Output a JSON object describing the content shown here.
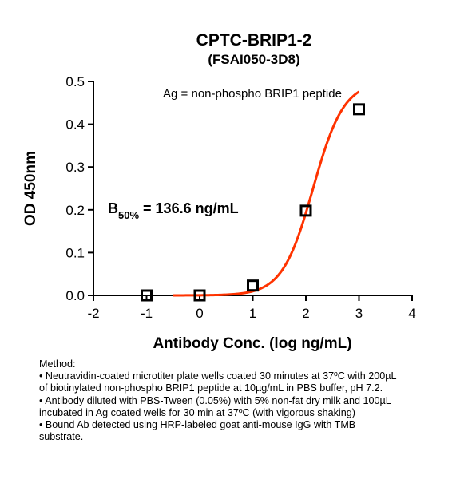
{
  "chart_data": {
    "type": "scatter",
    "title": "CPTC-BRIP1-2",
    "subtitle": "(FSAI050-3D8)",
    "xlabel": "Antibody Conc. (log ng/mL)",
    "ylabel": "OD 450nm",
    "xlim": [
      -2,
      4
    ],
    "ylim": [
      0.0,
      0.5
    ],
    "xticks": [
      "-2",
      "-1",
      "0",
      "1",
      "2",
      "3",
      "4"
    ],
    "yticks": [
      "0.0",
      "0.1",
      "0.2",
      "0.3",
      "0.4",
      "0.5"
    ],
    "annotation": "Ag = non-phospho BRIP1 peptide",
    "b50_label": {
      "main": "B",
      "sub": "50%",
      "rest": " = 136.6 ng/mL"
    },
    "grid": false,
    "points": [
      {
        "x": -1,
        "y": 0.0
      },
      {
        "x": 0,
        "y": 0.0
      },
      {
        "x": 1,
        "y": 0.023
      },
      {
        "x": 2,
        "y": 0.198
      },
      {
        "x": 3,
        "y": 0.435
      }
    ],
    "fit_curve": {
      "color": "#ff3300",
      "x_start": -0.5,
      "x_end": 3.0,
      "bottom": 0.0,
      "top": 0.5,
      "log_ec50": 2.1355,
      "hill": 1.5
    },
    "marker_color": "#000000"
  },
  "method": {
    "heading": "Method:",
    "lines": [
      "• Neutravidin-coated microtiter plate wells coated 30 minutes at 37ºC  with 200µL",
      "of biotinylated non-phospho BRIP1 peptide  at 10µg/mL in PBS buffer, pH 7.2.",
      "• Antibody diluted with PBS-Tween (0.05%) with 5% non-fat dry milk and 100µL",
      "incubated in Ag coated wells for 30 min at 37ºC (with vigorous shaking)",
      "• Bound Ab detected using HRP-labeled goat anti-mouse IgG with TMB",
      "substrate."
    ]
  }
}
